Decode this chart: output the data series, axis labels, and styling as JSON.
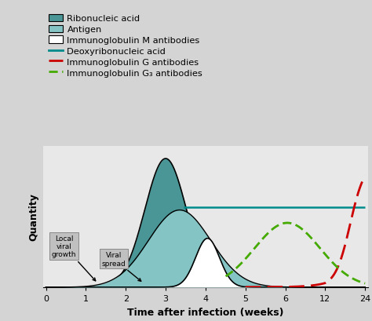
{
  "background_color": "#d4d4d4",
  "plot_bg_color": "#e8e8e8",
  "rna_fill_color": "#4a9696",
  "antigen_fill_color": "#85c4c4",
  "igm_fill_color": "#ffffff",
  "dna_color": "#008b8b",
  "igg_color": "#cc0000",
  "igg3_color": "#44aa00",
  "xlabel": "Time after infection (weeks)",
  "ylabel": "Quantity",
  "xtick_labels": [
    "0",
    "1",
    "2",
    "3",
    "4",
    "5",
    "6",
    "12",
    "24"
  ],
  "legend_labels": [
    "Ribonucleic acid",
    "Antigen",
    "Immunoglobulin M antibodies",
    "Deoxyribonucleic acid",
    "Immunoglobulin G antibodies",
    "Immunoglobulin G₃ antibodies"
  ],
  "annot1": "Local\nviral\ngrowth",
  "annot2": "Viral\nspread",
  "dna_level": 0.62,
  "rna_mu": 3.0,
  "rna_sigma": 0.52,
  "rna_amp": 1.0,
  "antigen_mu": 3.35,
  "antigen_sigma": 0.78,
  "antigen_amp": 0.6,
  "igm_mu": 4.05,
  "igm_sigma": 0.3,
  "igm_amp": 0.38,
  "igg3_mu_week": 6.3,
  "igg3_sigma": 0.82,
  "igg3_amp": 0.5
}
